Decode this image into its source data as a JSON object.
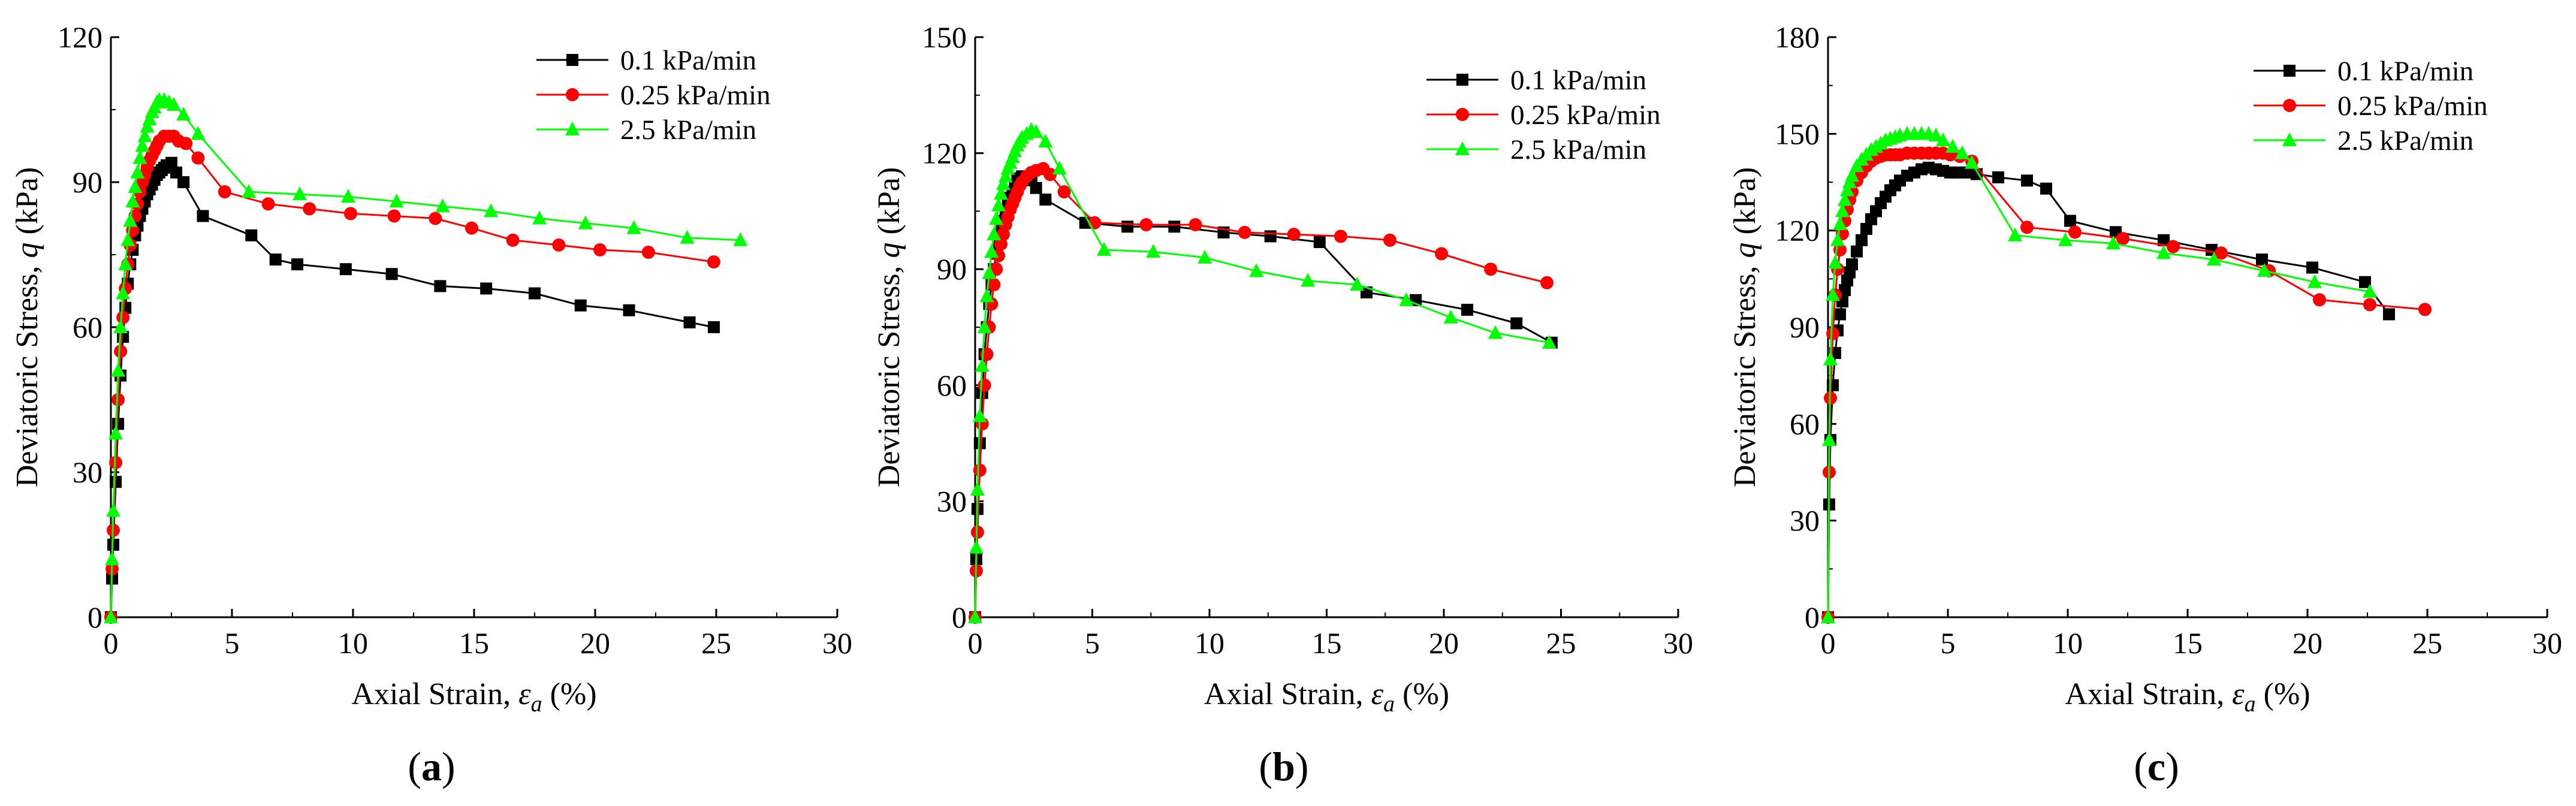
{
  "chart_data": [
    {
      "type": "line",
      "panel": "a",
      "panel_label": [
        "(",
        "a",
        ")"
      ],
      "xlabel": {
        "prefix": "Axial Strain, ",
        "symbol": "ε",
        "sub": "a",
        "suffix": " (%)"
      },
      "ylabel": {
        "prefix": "Deviatoric Stress, ",
        "symbol": "q",
        "suffix": " (kPa)"
      },
      "xlim": [
        0,
        30
      ],
      "ylim": [
        0,
        120
      ],
      "xticks": [
        0,
        5,
        10,
        15,
        20,
        25,
        30
      ],
      "yticks": [
        0,
        30,
        60,
        90,
        120
      ],
      "legend_position": "top-right",
      "series": [
        {
          "name": "0.1  kPa/min",
          "color": "#000000",
          "marker": "square",
          "x": [
            0,
            0.05,
            0.1,
            0.2,
            0.3,
            0.4,
            0.5,
            0.6,
            0.7,
            0.8,
            0.9,
            1.0,
            1.1,
            1.2,
            1.3,
            1.4,
            1.5,
            1.6,
            1.7,
            1.8,
            1.9,
            2.0,
            2.1,
            2.2,
            2.3,
            2.5,
            2.7,
            3.0,
            3.8,
            5.8,
            6.8,
            7.7,
            9.7,
            11.6,
            13.6,
            15.5,
            17.5,
            19.4,
            21.4,
            23.9,
            24.9
          ],
          "y": [
            0,
            8,
            15,
            28,
            40,
            50,
            58,
            64,
            69,
            73,
            76,
            79,
            81,
            83,
            84.5,
            86,
            87.5,
            88.5,
            89.5,
            90.5,
            91.5,
            92,
            92.5,
            93,
            93.5,
            94,
            92,
            90,
            83,
            79,
            74,
            73,
            72,
            71,
            68.5,
            68,
            67,
            64.5,
            63.5,
            61,
            60
          ]
        },
        {
          "name": "0.25 kPa/min",
          "color": "#ff0000",
          "marker": "circle",
          "x": [
            0,
            0.05,
            0.1,
            0.2,
            0.3,
            0.4,
            0.5,
            0.6,
            0.7,
            0.8,
            0.9,
            1.0,
            1.1,
            1.2,
            1.3,
            1.4,
            1.5,
            1.6,
            1.7,
            1.8,
            1.9,
            2.0,
            2.2,
            2.4,
            2.6,
            2.8,
            3.1,
            3.6,
            4.7,
            6.5,
            8.2,
            9.9,
            11.7,
            13.4,
            14.9,
            16.6,
            18.5,
            20.2,
            22.2,
            24.9
          ],
          "y": [
            0,
            10,
            18,
            32,
            45,
            55,
            62,
            68,
            73,
            77,
            80,
            83,
            85.5,
            88,
            90,
            91.5,
            93,
            94.5,
            95.5,
            96.5,
            97.5,
            98.5,
            99.5,
            99.5,
            99.5,
            98.5,
            98,
            95,
            88,
            85.5,
            84.5,
            83.5,
            83,
            82.5,
            80.5,
            78,
            77,
            76,
            75.5,
            73.5
          ]
        },
        {
          "name": "2.5  kPa/min",
          "color": "#00ff00",
          "marker": "triangle",
          "x": [
            0,
            0.05,
            0.1,
            0.2,
            0.3,
            0.4,
            0.5,
            0.6,
            0.7,
            0.8,
            0.9,
            1.0,
            1.1,
            1.2,
            1.3,
            1.4,
            1.5,
            1.6,
            1.7,
            1.8,
            1.9,
            2.0,
            2.2,
            2.4,
            2.6,
            3.0,
            3.6,
            5.7,
            7.8,
            9.8,
            11.8,
            13.7,
            15.7,
            17.7,
            19.6,
            21.6,
            23.8,
            26.0
          ],
          "y": [
            0,
            12,
            22,
            38,
            51,
            60,
            67,
            73,
            78,
            82,
            86,
            89,
            92,
            95,
            97.5,
            99.5,
            101.5,
            103,
            104.5,
            105.5,
            106.5,
            107,
            107,
            106.5,
            106,
            104,
            100,
            88,
            87.5,
            87,
            86,
            85,
            84,
            82.5,
            81.5,
            80.5,
            78.5,
            78
          ]
        }
      ]
    },
    {
      "type": "line",
      "panel": "b",
      "panel_label": [
        "(",
        "b",
        ")"
      ],
      "xlabel": {
        "prefix": "Axial Strain, ",
        "symbol": "ε",
        "sub": "a",
        "suffix": " (%)"
      },
      "ylabel": {
        "prefix": "Deviatoric Stress, ",
        "symbol": "q",
        "suffix": " (kPa)"
      },
      "xlim": [
        0,
        30
      ],
      "ylim": [
        0,
        150
      ],
      "xticks": [
        0,
        5,
        10,
        15,
        20,
        25,
        30
      ],
      "yticks": [
        0,
        30,
        60,
        90,
        120,
        150
      ],
      "legend_position": "top-right",
      "series": [
        {
          "name": "0.1  kPa/min",
          "color": "#000000",
          "marker": "square",
          "x": [
            0,
            0.05,
            0.1,
            0.2,
            0.3,
            0.4,
            0.5,
            0.6,
            0.7,
            0.8,
            0.9,
            1.0,
            1.1,
            1.2,
            1.3,
            1.4,
            1.5,
            1.6,
            1.7,
            1.8,
            1.9,
            2.0,
            2.2,
            2.4,
            2.6,
            3.0,
            4.7,
            6.5,
            8.5,
            10.6,
            12.6,
            14.7,
            16.7,
            18.8,
            21.0,
            23.1,
            24.6
          ],
          "y": [
            0,
            15,
            28,
            45,
            58,
            68,
            75,
            81,
            86,
            90,
            94,
            97,
            100,
            102.5,
            104.5,
            106.5,
            108.5,
            110,
            111.5,
            113,
            113.5,
            114,
            114,
            113,
            111,
            108,
            102,
            101,
            101,
            99.5,
            98.5,
            97,
            84,
            82,
            79.5,
            76,
            71
          ]
        },
        {
          "name": "0.25 kPa/min",
          "color": "#ff0000",
          "marker": "circle",
          "x": [
            0,
            0.05,
            0.1,
            0.2,
            0.3,
            0.4,
            0.5,
            0.6,
            0.7,
            0.8,
            0.9,
            1.0,
            1.1,
            1.2,
            1.3,
            1.4,
            1.5,
            1.6,
            1.7,
            1.8,
            1.9,
            2.0,
            2.2,
            2.4,
            2.6,
            2.9,
            3.2,
            3.8,
            5.1,
            7.3,
            9.4,
            11.5,
            13.6,
            15.6,
            17.7,
            19.9,
            22.0,
            24.4
          ],
          "y": [
            0,
            12,
            22,
            38,
            50,
            60,
            68,
            75,
            81,
            86,
            90,
            93.5,
            96.5,
            99,
            101.5,
            103.5,
            105.5,
            107,
            108.5,
            110,
            111.5,
            112.5,
            114,
            115,
            115.5,
            116,
            114.5,
            110,
            102,
            101.5,
            101.5,
            99.5,
            99,
            98.5,
            97.5,
            94,
            90,
            86.5
          ]
        },
        {
          "name": "2.5  kPa/min",
          "color": "#00ff00",
          "marker": "triangle",
          "x": [
            0,
            0.05,
            0.1,
            0.2,
            0.3,
            0.4,
            0.5,
            0.6,
            0.7,
            0.8,
            0.9,
            1.0,
            1.1,
            1.2,
            1.3,
            1.4,
            1.5,
            1.6,
            1.7,
            1.8,
            1.9,
            2.0,
            2.2,
            2.4,
            2.6,
            3.0,
            3.6,
            5.5,
            7.6,
            9.8,
            12.0,
            14.2,
            16.3,
            18.4,
            20.3,
            22.2,
            24.5
          ],
          "y": [
            0,
            18,
            33,
            52,
            65,
            75,
            83,
            89,
            94.5,
            99,
            103,
            106.5,
            109.5,
            112,
            114,
            116,
            117.5,
            119,
            120.5,
            122,
            123,
            124,
            125,
            126,
            125.5,
            123,
            116,
            95,
            94.5,
            93,
            89.5,
            87,
            86,
            82,
            77.5,
            73.5,
            71
          ]
        }
      ]
    },
    {
      "type": "line",
      "panel": "c",
      "panel_label": [
        "(",
        "c",
        ")"
      ],
      "xlabel": {
        "prefix": "Axial Strain, ",
        "symbol": "ε",
        "sub": "a",
        "suffix": " (%)"
      },
      "ylabel": {
        "prefix": "Deviatoric Stress, ",
        "symbol": "q",
        "suffix": " (kPa)"
      },
      "xlim": [
        0,
        30
      ],
      "ylim": [
        0,
        180
      ],
      "xticks": [
        0,
        5,
        10,
        15,
        20,
        25,
        30
      ],
      "yticks": [
        0,
        30,
        60,
        90,
        120,
        150,
        180
      ],
      "legend_position": "top-right",
      "series": [
        {
          "name": "0.1  kPa/min",
          "color": "#000000",
          "marker": "square",
          "x": [
            0,
            0.05,
            0.1,
            0.2,
            0.3,
            0.4,
            0.5,
            0.6,
            0.7,
            0.8,
            0.9,
            1.0,
            1.2,
            1.4,
            1.6,
            1.8,
            2.0,
            2.2,
            2.4,
            2.6,
            2.8,
            3.0,
            3.3,
            3.6,
            3.9,
            4.2,
            4.5,
            4.8,
            5.1,
            5.4,
            5.8,
            6.2,
            7.1,
            8.3,
            9.1,
            10.1,
            12.0,
            14.0,
            16.0,
            18.1,
            20.2,
            22.4,
            23.4
          ],
          "y": [
            0,
            35,
            55,
            72,
            82,
            89,
            94,
            98,
            101.5,
            104.5,
            107,
            109.5,
            113.5,
            117,
            120.5,
            123.5,
            126,
            128.5,
            130.5,
            132.5,
            134,
            135.5,
            137,
            138,
            139,
            139.5,
            139,
            138.5,
            138,
            138,
            138,
            137.5,
            136.5,
            135.5,
            133,
            123,
            119.5,
            117,
            114,
            111,
            108.5,
            104,
            94
          ]
        },
        {
          "name": "0.25 kPa/min",
          "color": "#ff0000",
          "marker": "circle",
          "x": [
            0,
            0.05,
            0.1,
            0.2,
            0.3,
            0.4,
            0.5,
            0.6,
            0.7,
            0.8,
            0.9,
            1.0,
            1.2,
            1.4,
            1.6,
            1.8,
            2.0,
            2.2,
            2.4,
            2.6,
            2.8,
            3.0,
            3.3,
            3.6,
            3.9,
            4.2,
            4.5,
            4.8,
            5.1,
            5.5,
            6.0,
            8.3,
            10.3,
            12.3,
            14.4,
            16.4,
            18.4,
            20.5,
            22.6,
            24.9
          ],
          "y": [
            0,
            45,
            68,
            88,
            100,
            108,
            114,
            119,
            123,
            126.5,
            129.5,
            132,
            135.5,
            138,
            140,
            141.5,
            142.5,
            143,
            143.5,
            143.5,
            143.5,
            143.5,
            144,
            144,
            144,
            144,
            144,
            144,
            143.5,
            143,
            141.5,
            121,
            119.5,
            117.5,
            115,
            113,
            107.5,
            98.5,
            97,
            95.5
          ]
        },
        {
          "name": "2.5  kPa/min",
          "color": "#00ff00",
          "marker": "triangle",
          "x": [
            0,
            0.05,
            0.1,
            0.2,
            0.3,
            0.4,
            0.5,
            0.6,
            0.7,
            0.8,
            0.9,
            1.0,
            1.2,
            1.4,
            1.6,
            1.8,
            2.0,
            2.2,
            2.4,
            2.6,
            2.8,
            3.0,
            3.3,
            3.6,
            3.9,
            4.2,
            4.5,
            4.8,
            5.2,
            5.6,
            6.0,
            7.8,
            9.9,
            11.9,
            14.0,
            16.1,
            18.2,
            20.3,
            22.6
          ],
          "y": [
            0,
            55,
            80,
            100,
            110,
            117,
            122,
            126,
            129.5,
            132.5,
            135,
            137,
            140,
            142,
            143.5,
            145,
            146,
            147,
            148,
            148.5,
            149,
            149.5,
            150,
            150,
            150,
            150,
            149.5,
            148,
            146,
            144,
            141,
            118.5,
            117,
            116,
            113,
            111,
            107.5,
            104,
            101
          ]
        }
      ]
    }
  ]
}
